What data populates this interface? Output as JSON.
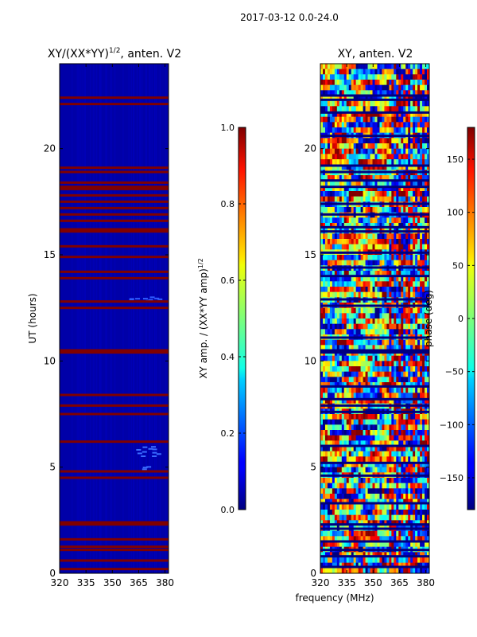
{
  "chart_data": {
    "type": "heatmap",
    "suptitle": "2017-03-12 0.0-24.0",
    "panels": [
      {
        "id": "amp",
        "title_main": "XY/(XX*YY)",
        "title_sup": "1/2",
        "title_tail": ", anten. V2",
        "xlim": [
          320,
          382
        ],
        "ylim": [
          0,
          24
        ],
        "xticks": [
          320,
          335,
          350,
          365,
          380
        ],
        "yticks": [
          0,
          5,
          10,
          15,
          20
        ],
        "ylabel": "UT (hours)",
        "colormap": "jet",
        "background_value": 0.0,
        "flagged_value": 1.0,
        "flagged_rows_ut": [
          0.2,
          0.6,
          1.1,
          1.25,
          1.6,
          2.3,
          2.4,
          4.5,
          4.8,
          6.2,
          7.5,
          7.9,
          8.4,
          10.4,
          10.5,
          12.5,
          12.8,
          13.9,
          14.2,
          14.9,
          15.4,
          16.1,
          16.2,
          16.6,
          16.9,
          17.2,
          17.5,
          17.8,
          18.1,
          18.2,
          18.4,
          18.9,
          19.1,
          22.1,
          22.4
        ],
        "colorbar": {
          "label_main": "XY amp. / (XX*YY amp)",
          "label_sup": "1/2",
          "range": [
            0.0,
            1.0
          ],
          "ticks": [
            "0.0",
            "0.2",
            "0.4",
            "0.6",
            "0.8",
            "1.0"
          ]
        }
      },
      {
        "id": "phase",
        "title": "XY, anten. V2",
        "xlim": [
          320,
          382
        ],
        "ylim": [
          0,
          24
        ],
        "xticks": [
          320,
          335,
          350,
          365,
          380
        ],
        "yticks": [
          0,
          5,
          10,
          15,
          20
        ],
        "xlabel": "frequency (MHz)",
        "colormap": "jet",
        "flagged_rows_ut": [
          0.3,
          0.8,
          1.1,
          1.5,
          2.1,
          2.3,
          3.3,
          4.6,
          5.2,
          6.0,
          7.6,
          7.9,
          8.2,
          8.8,
          10.4,
          10.5,
          11.1,
          12.6,
          12.9,
          14.0,
          14.4,
          15.1,
          16.1,
          16.3,
          16.9,
          17.4,
          18.2,
          18.5,
          18.9,
          19.2,
          20.6,
          21.7,
          22.3,
          22.5
        ],
        "colorbar": {
          "label": "phase (deg)",
          "range": [
            -180,
            180
          ],
          "ticks": [
            "−150",
            "−100",
            "−50",
            "0",
            "50",
            "100",
            "150"
          ]
        }
      }
    ]
  }
}
